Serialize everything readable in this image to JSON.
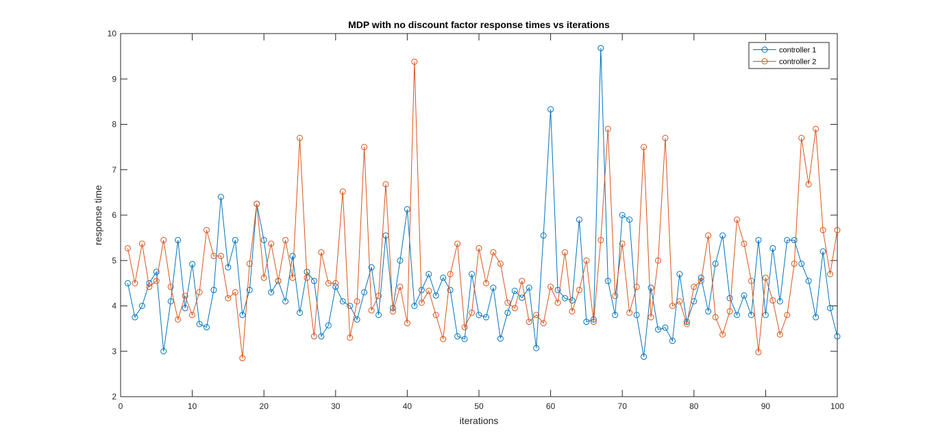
{
  "chart_data": {
    "type": "line",
    "title": "MDP with no discount factor response times vs iterations",
    "xlabel": "iterations",
    "ylabel": "response time",
    "xlim": [
      0,
      100
    ],
    "ylim": [
      2,
      10
    ],
    "xticks": [
      0,
      10,
      20,
      30,
      40,
      50,
      60,
      70,
      80,
      90,
      100
    ],
    "yticks": [
      2,
      3,
      4,
      5,
      6,
      7,
      8,
      9,
      10
    ],
    "grid": false,
    "legend_location": "top-right",
    "marker": "circle",
    "series": [
      {
        "name": "controller 1",
        "color": "#0072BD",
        "x": [
          1,
          2,
          3,
          4,
          5,
          6,
          7,
          8,
          9,
          10,
          11,
          12,
          13,
          14,
          15,
          16,
          17,
          18,
          19,
          20,
          21,
          22,
          23,
          24,
          25,
          26,
          27,
          28,
          29,
          30,
          31,
          32,
          33,
          34,
          35,
          36,
          37,
          38,
          39,
          40,
          41,
          42,
          43,
          44,
          45,
          46,
          47,
          48,
          49,
          50,
          51,
          52,
          53,
          54,
          55,
          56,
          57,
          58,
          59,
          60,
          61,
          62,
          63,
          64,
          65,
          66,
          67,
          68,
          69,
          70,
          71,
          72,
          73,
          74,
          75,
          76,
          77,
          78,
          79,
          80,
          81,
          82,
          83,
          84,
          85,
          86,
          87,
          88,
          89,
          90,
          91,
          92,
          93,
          94,
          95,
          96,
          97,
          98,
          99,
          100
        ],
        "values": [
          4.5,
          3.75,
          4.0,
          4.5,
          4.75,
          3.0,
          4.1,
          5.45,
          3.95,
          4.92,
          3.6,
          3.53,
          4.35,
          6.4,
          4.85,
          5.45,
          3.8,
          4.35,
          6.25,
          5.45,
          4.3,
          4.55,
          4.1,
          5.1,
          3.85,
          4.75,
          4.55,
          3.33,
          3.57,
          4.42,
          4.1,
          4.0,
          3.7,
          4.3,
          4.85,
          3.8,
          5.55,
          3.95,
          5.0,
          6.13,
          4.0,
          4.35,
          4.7,
          4.23,
          4.62,
          4.35,
          3.33,
          3.27,
          4.7,
          3.8,
          3.75,
          4.4,
          3.28,
          3.85,
          4.33,
          4.18,
          4.4,
          3.07,
          5.55,
          8.33,
          4.35,
          4.17,
          4.12,
          5.9,
          3.65,
          3.7,
          9.68,
          4.55,
          3.8,
          6.0,
          5.9,
          3.8,
          2.88,
          4.4,
          3.48,
          3.52,
          3.23,
          4.7,
          3.65,
          4.1,
          4.62,
          3.88,
          4.93,
          5.55,
          4.17,
          3.8,
          4.23,
          3.8,
          5.45,
          3.8,
          5.27,
          4.1,
          5.45,
          5.45,
          4.93,
          4.55,
          3.75,
          5.2,
          3.95,
          3.33
        ]
      },
      {
        "name": "controller 2",
        "color": "#D95319",
        "x": [
          1,
          2,
          3,
          4,
          5,
          6,
          7,
          8,
          9,
          10,
          11,
          12,
          13,
          14,
          15,
          16,
          17,
          18,
          19,
          20,
          21,
          22,
          23,
          24,
          25,
          26,
          27,
          28,
          29,
          30,
          31,
          32,
          33,
          34,
          35,
          36,
          37,
          38,
          39,
          40,
          41,
          42,
          43,
          44,
          45,
          46,
          47,
          48,
          49,
          50,
          51,
          52,
          53,
          54,
          55,
          56,
          57,
          58,
          59,
          60,
          61,
          62,
          63,
          64,
          65,
          66,
          67,
          68,
          69,
          70,
          71,
          72,
          73,
          74,
          75,
          76,
          77,
          78,
          79,
          80,
          81,
          82,
          83,
          84,
          85,
          86,
          87,
          88,
          89,
          90,
          91,
          92,
          93,
          94,
          95,
          96,
          97,
          98,
          99,
          100
        ],
        "values": [
          5.27,
          4.5,
          5.37,
          4.42,
          4.55,
          5.45,
          4.42,
          3.7,
          4.22,
          3.8,
          4.3,
          5.67,
          5.1,
          5.1,
          4.17,
          4.3,
          2.85,
          4.93,
          6.25,
          4.62,
          5.37,
          4.55,
          5.45,
          4.62,
          7.7,
          4.62,
          3.33,
          5.18,
          4.5,
          4.5,
          6.52,
          3.3,
          4.1,
          7.5,
          3.9,
          4.22,
          6.68,
          3.88,
          4.42,
          3.62,
          9.38,
          4.07,
          4.33,
          3.8,
          3.27,
          4.7,
          5.37,
          3.53,
          3.85,
          5.27,
          4.5,
          5.18,
          4.93,
          4.07,
          3.95,
          4.55,
          3.65,
          3.8,
          3.62,
          4.42,
          4.07,
          5.18,
          3.88,
          4.35,
          5.0,
          3.65,
          5.45,
          7.9,
          4.22,
          5.37,
          3.85,
          4.42,
          7.5,
          3.75,
          5.0,
          7.7,
          4.0,
          4.1,
          3.6,
          4.42,
          4.55,
          5.55,
          3.75,
          3.37,
          3.88,
          5.9,
          5.37,
          4.55,
          2.98,
          4.62,
          4.12,
          3.37,
          3.8,
          4.93,
          7.7,
          6.68,
          7.9,
          5.67,
          4.7,
          5.67
        ]
      }
    ]
  }
}
